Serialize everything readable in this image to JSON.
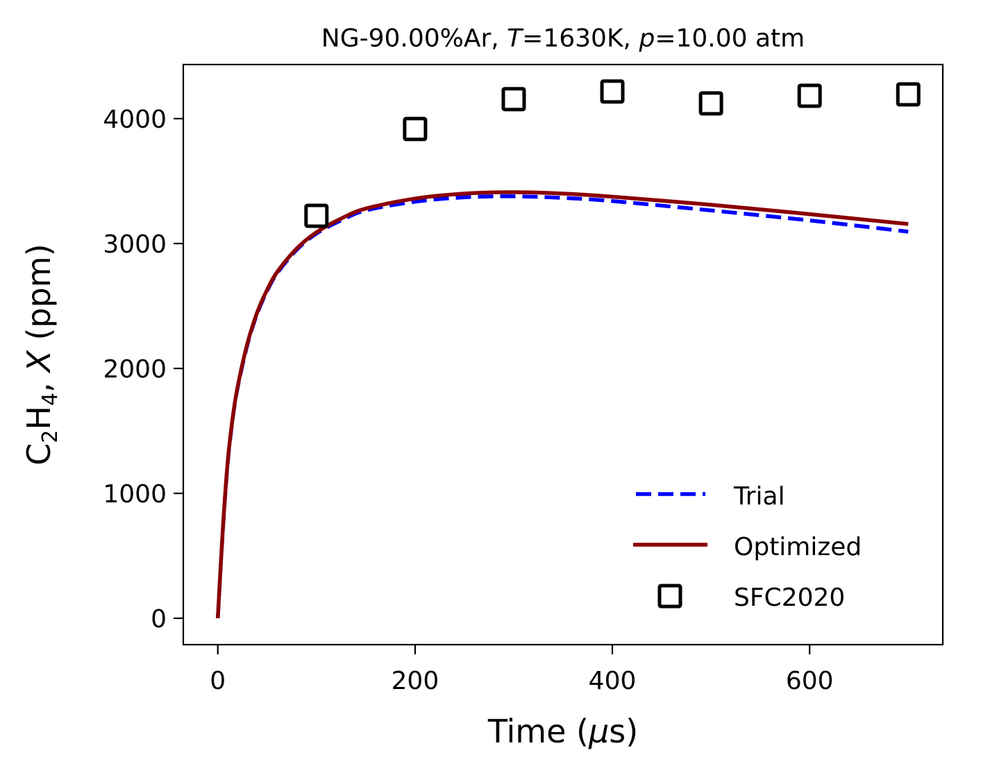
{
  "chart_data": {
    "type": "line",
    "title": {
      "prefix": "NG-90.00%Ar, ",
      "t_symbol": "T",
      "t_value": "=1630K, ",
      "p_symbol": "p",
      "p_value": "=10.00 atm"
    },
    "xlabel": {
      "text": "Time (",
      "mu": "μ",
      "unit": "s)"
    },
    "ylabel": {
      "species": "C",
      "sub1": "2",
      "h": "H",
      "sub2": "4",
      "rest": ", ",
      "x_symbol": "X",
      "unit": " (ppm)"
    },
    "xlim": [
      -35,
      735
    ],
    "ylim": [
      -211,
      4433
    ],
    "xticks": [
      0,
      200,
      400,
      600
    ],
    "yticks": [
      0,
      1000,
      2000,
      3000,
      4000
    ],
    "grid": false,
    "legend": {
      "placement": "lower-right",
      "entries": [
        "Trial",
        "Optimized",
        "SFC2020"
      ]
    },
    "series": [
      {
        "name": "Trial",
        "style": "dashed",
        "color": "#0000ff",
        "x": [
          0,
          5,
          10,
          15,
          20,
          30,
          40,
          50,
          60,
          80,
          100,
          125,
          150,
          200,
          250,
          300,
          350,
          400,
          500,
          600,
          700
        ],
        "y": [
          0,
          690,
          1240,
          1590,
          1840,
          2190,
          2440,
          2620,
          2760,
          2950,
          3080,
          3185,
          3265,
          3335,
          3370,
          3378,
          3365,
          3340,
          3265,
          3185,
          3095
        ]
      },
      {
        "name": "Optimized",
        "style": "solid",
        "color": "#8b0000",
        "x": [
          0,
          5,
          10,
          15,
          20,
          30,
          40,
          50,
          60,
          80,
          100,
          125,
          150,
          200,
          250,
          300,
          350,
          400,
          500,
          600,
          700
        ],
        "y": [
          0,
          700,
          1250,
          1600,
          1850,
          2200,
          2450,
          2630,
          2770,
          2960,
          3090,
          3200,
          3280,
          3360,
          3400,
          3411,
          3400,
          3375,
          3310,
          3235,
          3156
        ]
      },
      {
        "name": "SFC2020",
        "style": "marker-square",
        "color": "#000000",
        "x": [
          100,
          200,
          300,
          400,
          500,
          600,
          700
        ],
        "y": [
          3222,
          3917,
          4156,
          4217,
          4122,
          4183,
          4194
        ]
      }
    ]
  }
}
